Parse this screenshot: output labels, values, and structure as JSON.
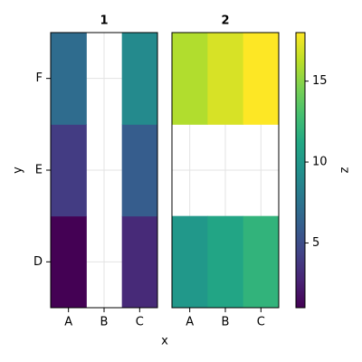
{
  "chart_data": {
    "type": "heatmap",
    "panels": [
      {
        "title": "1",
        "x": [
          "A",
          "B",
          "C"
        ],
        "y": [
          "D",
          "E",
          "F"
        ],
        "values": [
          [
            1,
            null,
            3
          ],
          [
            4,
            null,
            6
          ],
          [
            7,
            null,
            9
          ]
        ]
      },
      {
        "title": "2",
        "x": [
          "A",
          "B",
          "C"
        ],
        "y": [
          "D",
          "E",
          "F"
        ],
        "values": [
          [
            10,
            11,
            12
          ],
          [
            null,
            null,
            null
          ],
          [
            16,
            17,
            18
          ]
        ]
      }
    ],
    "xlabel": "x",
    "ylabel": "y",
    "colormap": "viridis",
    "colorbar": {
      "label": "z",
      "lim": [
        1,
        18
      ],
      "ticks": [
        5,
        10,
        15
      ]
    },
    "grid": true
  }
}
